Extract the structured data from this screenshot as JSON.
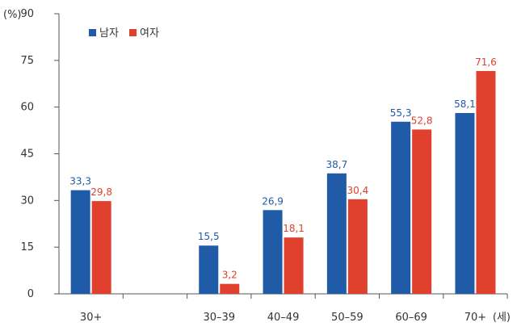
{
  "chart_data": {
    "type": "bar",
    "categories": [
      "30+",
      "",
      "30–39",
      "40–49",
      "50–59",
      "60–69",
      "70+"
    ],
    "series": [
      {
        "name": "남자",
        "color": "#1f5ba6",
        "values": [
          33.3,
          null,
          15.5,
          26.9,
          38.7,
          55.3,
          58.1
        ],
        "labels": [
          "33,3",
          "",
          "15,5",
          "26,9",
          "38,7",
          "55,3",
          "58,1"
        ]
      },
      {
        "name": "여자",
        "color": "#e0402e",
        "values": [
          29.8,
          null,
          3.2,
          18.1,
          30.4,
          52.8,
          71.6
        ],
        "labels": [
          "29,8",
          "",
          "3,2",
          "18,1",
          "30,4",
          "52,8",
          "71,6"
        ]
      }
    ],
    "yticks": [
      0,
      15,
      30,
      45,
      60,
      75,
      90
    ],
    "ylim": [
      0,
      90
    ],
    "y_unit": "(%)",
    "x_unit": "(세)",
    "grid": false,
    "legend": "top-left"
  }
}
